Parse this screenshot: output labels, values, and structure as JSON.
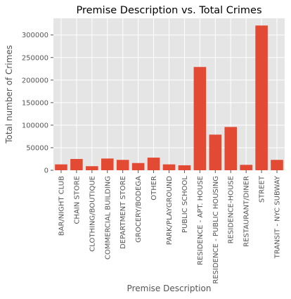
{
  "chart_data": {
    "type": "bar",
    "title": "Premise Description vs. Total Crimes",
    "xlabel": "Premise Description",
    "ylabel": "Total number of Crimes",
    "categories": [
      "BAR/NIGHT CLUB",
      "CHAIN STORE",
      "CLOTHING/BOUTIQUE",
      "COMMERCIAL BUILDING",
      "DEPARTMENT STORE",
      "GROCERY/BODEGA",
      "OTHER",
      "PARK/PLAYGROUND",
      "PUBLIC SCHOOL",
      "RESIDENCE - APT. HOUSE",
      "RESIDENCE - PUBLIC HOUSING",
      "RESIDENCE-HOUSE",
      "RESTAURANT/DINER",
      "STREET",
      "TRANSIT - NYC SUBWAY"
    ],
    "values": [
      13000,
      25000,
      9000,
      26000,
      23000,
      16000,
      28000,
      13000,
      11000,
      229000,
      79000,
      96000,
      12000,
      321000,
      23000
    ],
    "yticks": [
      0,
      50000,
      100000,
      150000,
      200000,
      250000,
      300000
    ],
    "ylim": [
      0,
      337000
    ],
    "grid": true,
    "legend": "none",
    "colors": {
      "bar": "#E24A33",
      "plot_background": "#E5E5E5",
      "grid": "#FFFFFF",
      "text": "#555555"
    }
  }
}
